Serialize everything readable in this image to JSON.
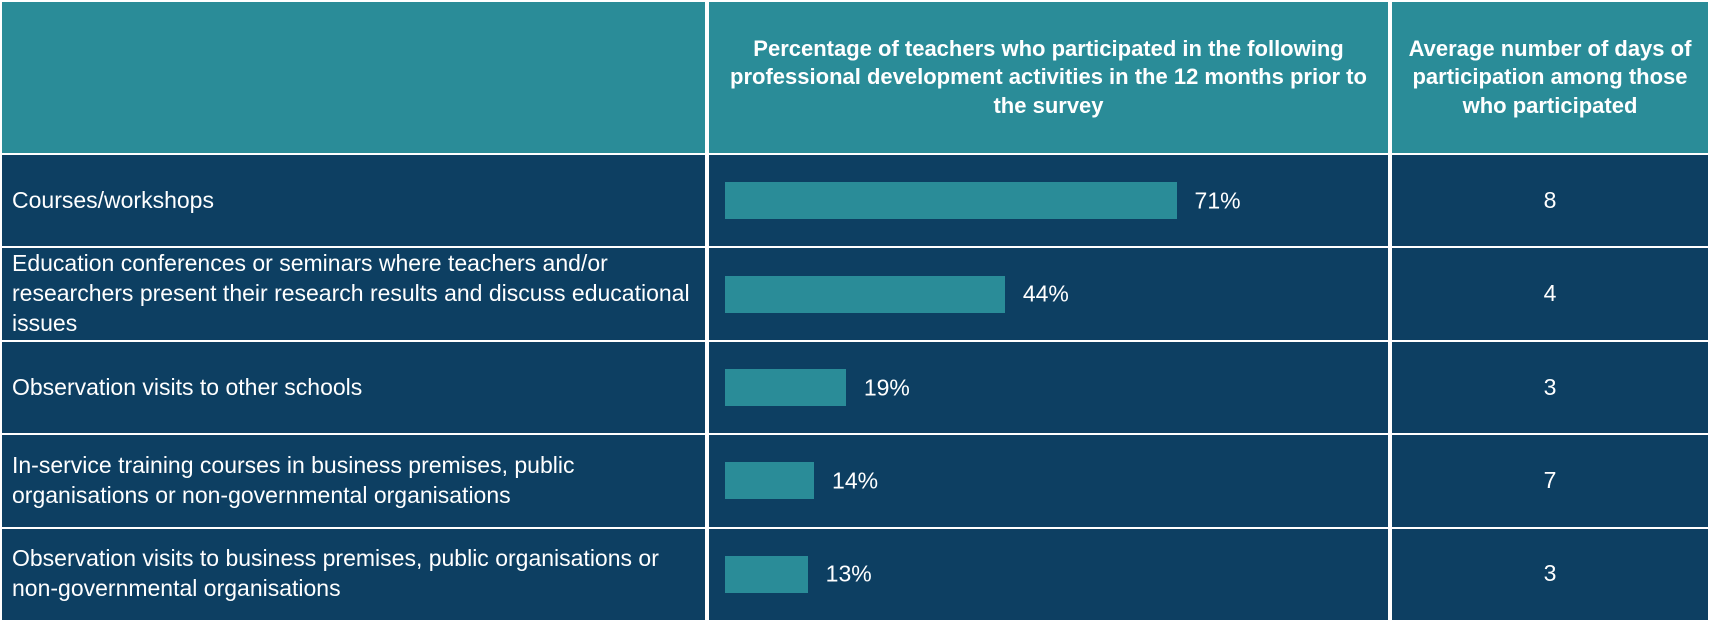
{
  "chart_data": {
    "type": "bar",
    "orientation": "horizontal",
    "headers": [
      "Percentage of teachers who participated in the following professional  development activities in the 12 months prior to the survey",
      "Average number of days of participation among those who participated"
    ],
    "categories": [
      "Courses/workshops",
      "Education conferences or seminars where teachers and/or researchers present their research results and discuss educational  issues",
      "Observation  visits to other schools",
      "In-service  training courses in business premises, public organisations or non-governmental  organisations",
      "Observation  visits to business premises, public organisations or non-governmental  organisations"
    ],
    "values": [
      71,
      44,
      19,
      14,
      13
    ],
    "value_labels": [
      "71%",
      "44%",
      "19%",
      "14%",
      "13%"
    ],
    "days": [
      8,
      4,
      3,
      7,
      3
    ],
    "color": "#2a8c98",
    "xlim": [
      0,
      100
    ]
  }
}
